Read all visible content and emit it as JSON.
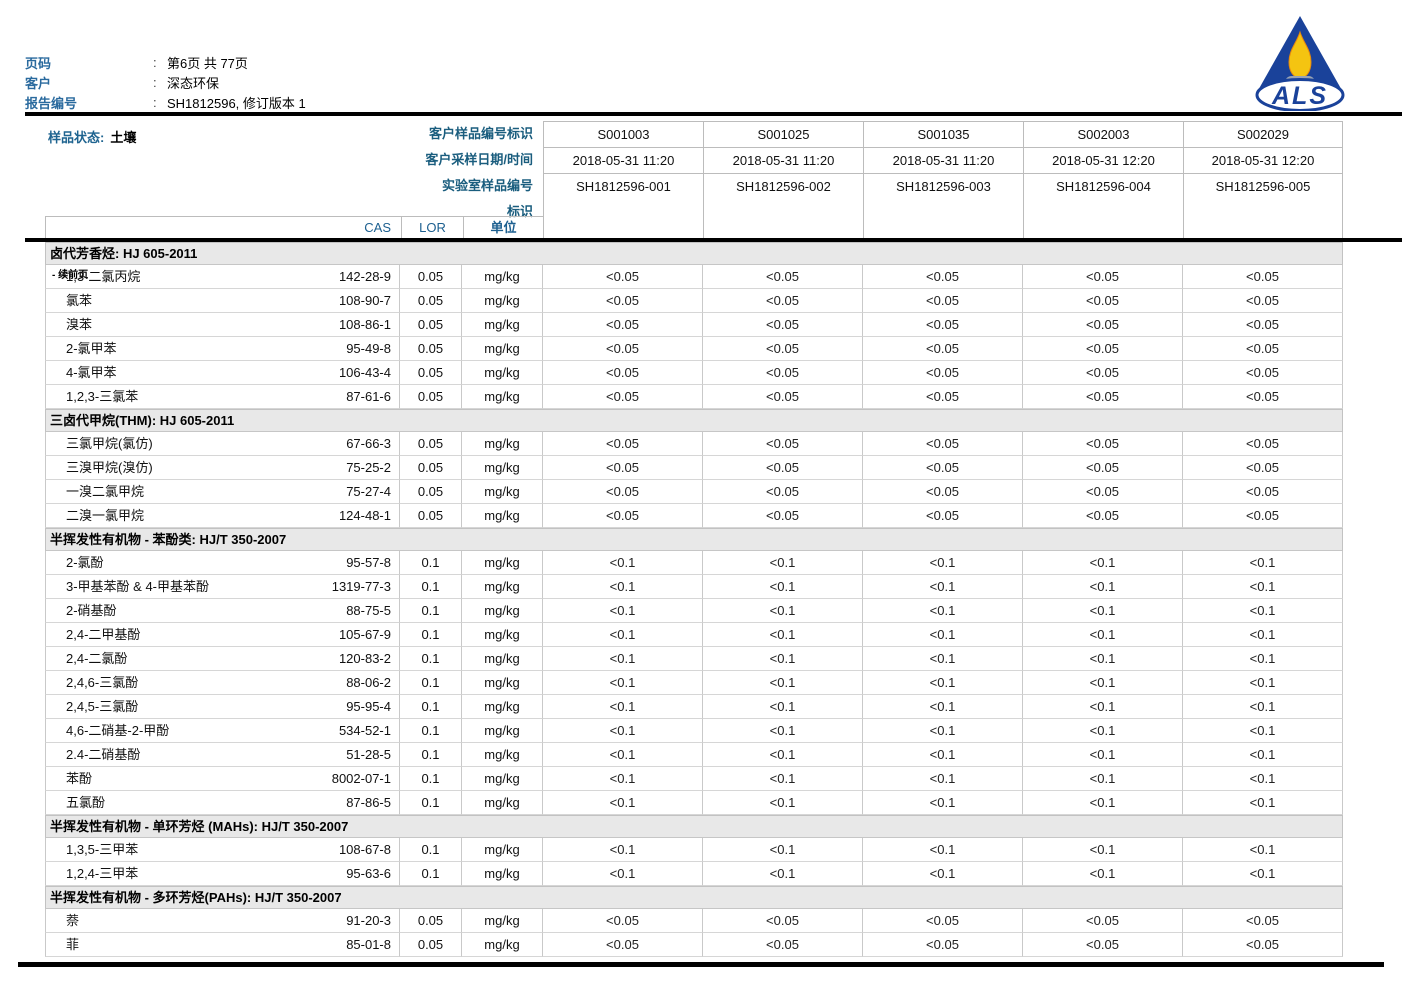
{
  "report_info": {
    "colon": ":",
    "rows": [
      {
        "label": "页码",
        "value": "第6页 共 77页"
      },
      {
        "label": "客户",
        "value": "深态环保"
      },
      {
        "label": "报告编号",
        "value": "SH1812596, 修订版本 1"
      }
    ]
  },
  "logo": {
    "text": "ALS"
  },
  "sample_header": {
    "matrix_label": "样品状态:",
    "matrix_value": "土壤",
    "row_labels": [
      "客户样品编号标识",
      "客户采样日期/时间",
      "实验室样品编号",
      "标识"
    ],
    "samples": [
      {
        "id": "S001003",
        "datetime": "2018-05-31 11:20",
        "lab_id": "SH1812596-001"
      },
      {
        "id": "S001025",
        "datetime": "2018-05-31 11:20",
        "lab_id": "SH1812596-002"
      },
      {
        "id": "S001035",
        "datetime": "2018-05-31 11:20",
        "lab_id": "SH1812596-003"
      },
      {
        "id": "S002003",
        "datetime": "2018-05-31 12:20",
        "lab_id": "SH1812596-004"
      },
      {
        "id": "S002029",
        "datetime": "2018-05-31 12:20",
        "lab_id": "SH1812596-005"
      }
    ]
  },
  "columns": {
    "cas": "CAS",
    "lor": "LOR",
    "unit": "单位"
  },
  "sections": [
    {
      "title": "卤代芳香烃: HJ 605-2011",
      "suffix": "- 续前页",
      "rows": [
        {
          "name": "1,3-二氯丙烷",
          "cas": "142-28-9",
          "lor": "0.05",
          "unit": "mg/kg",
          "values": [
            "<0.05",
            "<0.05",
            "<0.05",
            "<0.05",
            "<0.05"
          ]
        },
        {
          "name": "氯苯",
          "cas": "108-90-7",
          "lor": "0.05",
          "unit": "mg/kg",
          "values": [
            "<0.05",
            "<0.05",
            "<0.05",
            "<0.05",
            "<0.05"
          ]
        },
        {
          "name": "溴苯",
          "cas": "108-86-1",
          "lor": "0.05",
          "unit": "mg/kg",
          "values": [
            "<0.05",
            "<0.05",
            "<0.05",
            "<0.05",
            "<0.05"
          ]
        },
        {
          "name": "2-氯甲苯",
          "cas": "95-49-8",
          "lor": "0.05",
          "unit": "mg/kg",
          "values": [
            "<0.05",
            "<0.05",
            "<0.05",
            "<0.05",
            "<0.05"
          ]
        },
        {
          "name": "4-氯甲苯",
          "cas": "106-43-4",
          "lor": "0.05",
          "unit": "mg/kg",
          "values": [
            "<0.05",
            "<0.05",
            "<0.05",
            "<0.05",
            "<0.05"
          ]
        },
        {
          "name": "1,2,3-三氯苯",
          "cas": "87-61-6",
          "lor": "0.05",
          "unit": "mg/kg",
          "values": [
            "<0.05",
            "<0.05",
            "<0.05",
            "<0.05",
            "<0.05"
          ]
        }
      ]
    },
    {
      "title": "三卤代甲烷(THM): HJ 605-2011",
      "suffix": "",
      "rows": [
        {
          "name": "三氯甲烷(氯仿)",
          "cas": "67-66-3",
          "lor": "0.05",
          "unit": "mg/kg",
          "values": [
            "<0.05",
            "<0.05",
            "<0.05",
            "<0.05",
            "<0.05"
          ]
        },
        {
          "name": "三溴甲烷(溴仿)",
          "cas": "75-25-2",
          "lor": "0.05",
          "unit": "mg/kg",
          "values": [
            "<0.05",
            "<0.05",
            "<0.05",
            "<0.05",
            "<0.05"
          ]
        },
        {
          "name": "一溴二氯甲烷",
          "cas": "75-27-4",
          "lor": "0.05",
          "unit": "mg/kg",
          "values": [
            "<0.05",
            "<0.05",
            "<0.05",
            "<0.05",
            "<0.05"
          ]
        },
        {
          "name": "二溴一氯甲烷",
          "cas": "124-48-1",
          "lor": "0.05",
          "unit": "mg/kg",
          "values": [
            "<0.05",
            "<0.05",
            "<0.05",
            "<0.05",
            "<0.05"
          ]
        }
      ]
    },
    {
      "title": "半挥发性有机物 - 苯酚类: HJ/T 350-2007",
      "suffix": "",
      "rows": [
        {
          "name": "2-氯酚",
          "cas": "95-57-8",
          "lor": "0.1",
          "unit": "mg/kg",
          "values": [
            "<0.1",
            "<0.1",
            "<0.1",
            "<0.1",
            "<0.1"
          ]
        },
        {
          "name": "3-甲基苯酚 & 4-甲基苯酚",
          "cas": "1319-77-3",
          "lor": "0.1",
          "unit": "mg/kg",
          "values": [
            "<0.1",
            "<0.1",
            "<0.1",
            "<0.1",
            "<0.1"
          ]
        },
        {
          "name": "2-硝基酚",
          "cas": "88-75-5",
          "lor": "0.1",
          "unit": "mg/kg",
          "values": [
            "<0.1",
            "<0.1",
            "<0.1",
            "<0.1",
            "<0.1"
          ]
        },
        {
          "name": "2,4-二甲基酚",
          "cas": "105-67-9",
          "lor": "0.1",
          "unit": "mg/kg",
          "values": [
            "<0.1",
            "<0.1",
            "<0.1",
            "<0.1",
            "<0.1"
          ]
        },
        {
          "name": "2,4-二氯酚",
          "cas": "120-83-2",
          "lor": "0.1",
          "unit": "mg/kg",
          "values": [
            "<0.1",
            "<0.1",
            "<0.1",
            "<0.1",
            "<0.1"
          ]
        },
        {
          "name": "2,4,6-三氯酚",
          "cas": "88-06-2",
          "lor": "0.1",
          "unit": "mg/kg",
          "values": [
            "<0.1",
            "<0.1",
            "<0.1",
            "<0.1",
            "<0.1"
          ]
        },
        {
          "name": "2,4,5-三氯酚",
          "cas": "95-95-4",
          "lor": "0.1",
          "unit": "mg/kg",
          "values": [
            "<0.1",
            "<0.1",
            "<0.1",
            "<0.1",
            "<0.1"
          ]
        },
        {
          "name": "4,6-二硝基-2-甲酚",
          "cas": "534-52-1",
          "lor": "0.1",
          "unit": "mg/kg",
          "values": [
            "<0.1",
            "<0.1",
            "<0.1",
            "<0.1",
            "<0.1"
          ]
        },
        {
          "name": "2.4-二硝基酚",
          "cas": "51-28-5",
          "lor": "0.1",
          "unit": "mg/kg",
          "values": [
            "<0.1",
            "<0.1",
            "<0.1",
            "<0.1",
            "<0.1"
          ]
        },
        {
          "name": "苯酚",
          "cas": "8002-07-1",
          "lor": "0.1",
          "unit": "mg/kg",
          "values": [
            "<0.1",
            "<0.1",
            "<0.1",
            "<0.1",
            "<0.1"
          ]
        },
        {
          "name": "五氯酚",
          "cas": "87-86-5",
          "lor": "0.1",
          "unit": "mg/kg",
          "values": [
            "<0.1",
            "<0.1",
            "<0.1",
            "<0.1",
            "<0.1"
          ]
        }
      ]
    },
    {
      "title": "半挥发性有机物 - 单环芳烃 (MAHs): HJ/T 350-2007",
      "suffix": "",
      "rows": [
        {
          "name": "1,3,5-三甲苯",
          "cas": "108-67-8",
          "lor": "0.1",
          "unit": "mg/kg",
          "values": [
            "<0.1",
            "<0.1",
            "<0.1",
            "<0.1",
            "<0.1"
          ]
        },
        {
          "name": "1,2,4-三甲苯",
          "cas": "95-63-6",
          "lor": "0.1",
          "unit": "mg/kg",
          "values": [
            "<0.1",
            "<0.1",
            "<0.1",
            "<0.1",
            "<0.1"
          ]
        }
      ]
    },
    {
      "title": "半挥发性有机物 - 多环芳烃(PAHs): HJ/T 350-2007",
      "suffix": "",
      "rows": [
        {
          "name": "萘",
          "cas": "91-20-3",
          "lor": "0.05",
          "unit": "mg/kg",
          "values": [
            "<0.05",
            "<0.05",
            "<0.05",
            "<0.05",
            "<0.05"
          ]
        },
        {
          "name": "菲",
          "cas": "85-01-8",
          "lor": "0.05",
          "unit": "mg/kg",
          "values": [
            "<0.05",
            "<0.05",
            "<0.05",
            "<0.05",
            "<0.05"
          ]
        }
      ]
    }
  ],
  "colors": {
    "label_blue": "#2a6a9e",
    "header_label_blue": "#1a5d7e",
    "cas_header_blue": "#1d6090",
    "section_band_bg": "#e8e8e8",
    "logo_blue": "#1a429a",
    "flame_yellow": "#f4c411",
    "burner_grey": "#98a2b4"
  }
}
